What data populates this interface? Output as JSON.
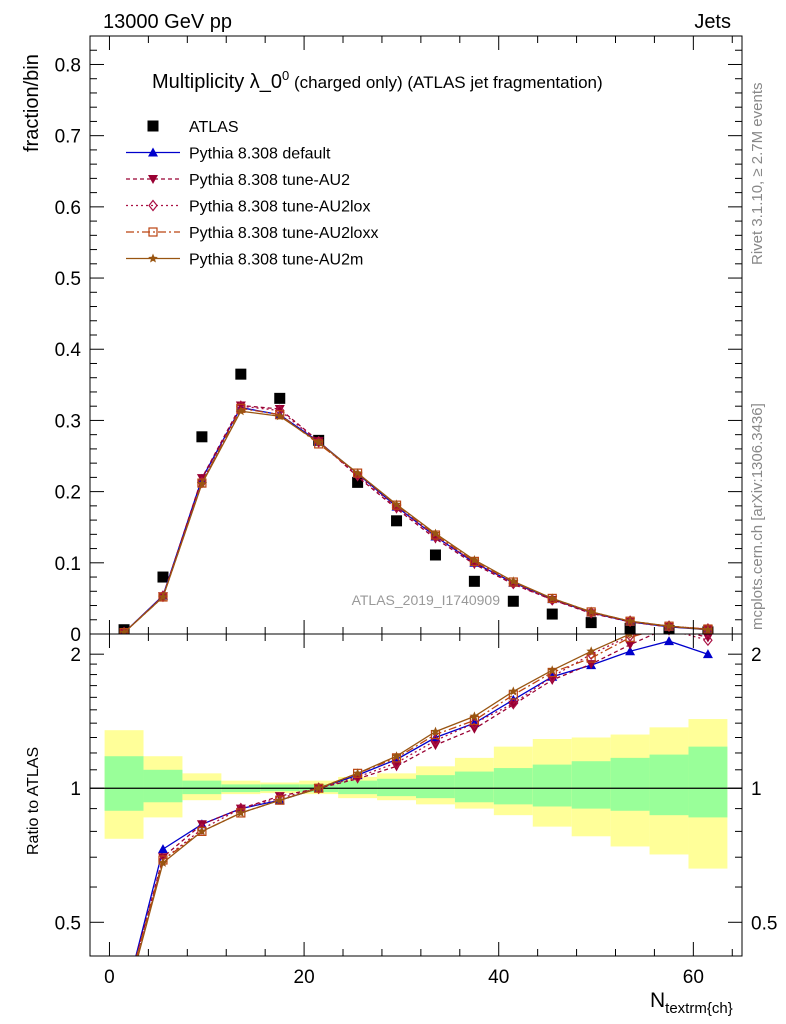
{
  "header": {
    "left": "13000 GeV pp",
    "right": "Jets"
  },
  "side_labels": {
    "rivet": "Rivet 3.1.10, ≥ 2.7M events",
    "mcplots": "mcplots.cern.ch [arXiv:1306.3436]"
  },
  "chart_data": [
    {
      "type": "scatter",
      "title_main": "Multiplicity λ_0",
      "title_sup": "0",
      "title_rest": " (charged only) (ATLAS jet fragmentation)",
      "ylabel": "fraction/bin",
      "watermark": "ATLAS_2019_I1740909",
      "xlim": [
        -2,
        65
      ],
      "ylim": [
        0,
        0.84
      ],
      "yticks": [
        0,
        0.1,
        0.2,
        0.3,
        0.4,
        0.5,
        0.6,
        0.7,
        0.8
      ],
      "ytick_labels": [
        "0",
        "0.1",
        "0.2",
        "0.3",
        "0.4",
        "0.5",
        "0.6",
        "0.7",
        "0.8"
      ],
      "x": [
        1.5,
        5.5,
        9.5,
        13.5,
        17.5,
        21.5,
        25.5,
        29.5,
        33.5,
        37.5,
        41.5,
        45.5,
        49.5,
        53.5,
        57.5,
        61.5
      ],
      "legend": [
        {
          "name": "ATLAS",
          "color": "#000000",
          "marker": "square",
          "dash": "none"
        },
        {
          "name": "Pythia 8.308 default",
          "color": "#0000cc",
          "marker": "triangle",
          "dash": "solid"
        },
        {
          "name": "Pythia 8.308 tune-AU2",
          "color": "#990033",
          "marker": "triangle-down",
          "dash": "4,3"
        },
        {
          "name": "Pythia 8.308 tune-AU2lox",
          "color": "#aa1144",
          "marker": "diamond-open",
          "dash": "2,3"
        },
        {
          "name": "Pythia 8.308 tune-AU2loxx",
          "color": "#bb4411",
          "marker": "square-open",
          "dash": "8,3,2,3"
        },
        {
          "name": "Pythia 8.308 tune-AU2m",
          "color": "#995511",
          "marker": "star",
          "dash": "solid"
        }
      ],
      "series": [
        {
          "name": "ATLAS",
          "values": [
            0.006,
            0.08,
            0.277,
            0.365,
            0.331,
            0.272,
            0.213,
            0.159,
            0.111,
            0.074,
            0.046,
            0.028,
            0.016,
            0.008,
            0.005,
            0.003
          ]
        },
        {
          "name": "Pythia 8.308 default",
          "values": [
            0.002,
            0.054,
            0.218,
            0.318,
            0.308,
            0.27,
            0.225,
            0.179,
            0.137,
            0.1,
            0.072,
            0.049,
            0.03,
            0.017,
            0.01,
            0.006
          ]
        },
        {
          "name": "Pythia 8.308 tune-AU2",
          "values": [
            0.002,
            0.053,
            0.219,
            0.321,
            0.316,
            0.271,
            0.221,
            0.176,
            0.134,
            0.098,
            0.07,
            0.048,
            0.029,
            0.017,
            0.01,
            0.007
          ]
        },
        {
          "name": "Pythia 8.308 tune-AU2lox",
          "values": [
            0.002,
            0.053,
            0.213,
            0.32,
            0.314,
            0.27,
            0.223,
            0.178,
            0.137,
            0.101,
            0.071,
            0.048,
            0.03,
            0.018,
            0.011,
            0.007
          ]
        },
        {
          "name": "Pythia 8.308 tune-AU2loxx",
          "values": [
            0.002,
            0.052,
            0.212,
            0.317,
            0.308,
            0.267,
            0.226,
            0.181,
            0.139,
            0.102,
            0.073,
            0.05,
            0.031,
            0.018,
            0.011,
            0.007
          ]
        },
        {
          "name": "Pythia 8.308 tune-AU2m",
          "values": [
            0.002,
            0.052,
            0.211,
            0.313,
            0.306,
            0.269,
            0.226,
            0.182,
            0.141,
            0.104,
            0.074,
            0.05,
            0.031,
            0.018,
            0.011,
            0.006
          ]
        }
      ]
    },
    {
      "type": "line",
      "ylabel": "Ratio to ATLAS",
      "xlabel_main": "N",
      "xlabel_sub": "textrm{ch}",
      "xlim": [
        -2,
        65
      ],
      "ylim": [
        0.42,
        2.22
      ],
      "yticks": [
        0.5,
        1,
        2
      ],
      "ytick_labels": [
        "0.5",
        "1",
        "2"
      ],
      "xticks": [
        0,
        20,
        40,
        60
      ],
      "xtick_labels": [
        "0",
        "20",
        "40",
        "60"
      ],
      "reference": 1,
      "band_colors": {
        "outer": "#ffff99",
        "inner": "#99ff99",
        "reference": "#000000"
      },
      "bins": [
        [
          -0.5,
          3.5
        ],
        [
          3.5,
          7.5
        ],
        [
          7.5,
          11.5
        ],
        [
          11.5,
          15.5
        ],
        [
          15.5,
          19.5
        ],
        [
          19.5,
          23.5
        ],
        [
          23.5,
          27.5
        ],
        [
          27.5,
          31.5
        ],
        [
          31.5,
          35.5
        ],
        [
          35.5,
          39.5
        ],
        [
          39.5,
          43.5
        ],
        [
          43.5,
          47.5
        ],
        [
          47.5,
          51.5
        ],
        [
          51.5,
          55.5
        ],
        [
          55.5,
          59.5
        ],
        [
          59.5,
          63.5
        ]
      ],
      "band_inner": [
        [
          0.89,
          1.18
        ],
        [
          0.93,
          1.1
        ],
        [
          0.97,
          1.04
        ],
        [
          0.98,
          1.02
        ],
        [
          0.985,
          1.02
        ],
        [
          0.98,
          1.02
        ],
        [
          0.97,
          1.04
        ],
        [
          0.96,
          1.05
        ],
        [
          0.95,
          1.07
        ],
        [
          0.93,
          1.09
        ],
        [
          0.92,
          1.11
        ],
        [
          0.91,
          1.13
        ],
        [
          0.9,
          1.15
        ],
        [
          0.89,
          1.17
        ],
        [
          0.87,
          1.19
        ],
        [
          0.86,
          1.24
        ]
      ],
      "band_outer": [
        [
          0.77,
          1.35
        ],
        [
          0.86,
          1.18
        ],
        [
          0.94,
          1.08
        ],
        [
          0.97,
          1.04
        ],
        [
          0.975,
          1.03
        ],
        [
          0.97,
          1.04
        ],
        [
          0.95,
          1.06
        ],
        [
          0.94,
          1.08
        ],
        [
          0.92,
          1.12
        ],
        [
          0.9,
          1.17
        ],
        [
          0.87,
          1.24
        ],
        [
          0.82,
          1.29
        ],
        [
          0.78,
          1.3
        ],
        [
          0.74,
          1.32
        ],
        [
          0.71,
          1.37
        ],
        [
          0.66,
          1.43
        ]
      ],
      "series": [
        {
          "name": "Pythia 8.308 default",
          "values": [
            0.33,
            0.73,
            0.83,
            0.9,
            0.94,
            1.0,
            1.07,
            1.16,
            1.3,
            1.4,
            1.58,
            1.78,
            1.89,
            2.03,
            2.14,
            2.0
          ]
        },
        {
          "name": "Pythia 8.308 tune-AU2",
          "values": [
            0.33,
            0.7,
            0.83,
            0.9,
            0.96,
            1.0,
            1.05,
            1.12,
            1.25,
            1.36,
            1.54,
            1.75,
            1.9,
            2.1,
            2.3,
            2.18
          ]
        },
        {
          "name": "Pythia 8.308 tune-AU2lox",
          "values": [
            0.33,
            0.69,
            0.81,
            0.9,
            0.95,
            1.0,
            1.06,
            1.14,
            1.28,
            1.4,
            1.55,
            1.78,
            2.0,
            2.2,
            2.27,
            2.15
          ]
        },
        {
          "name": "Pythia 8.308 tune-AU2loxx",
          "values": [
            0.33,
            0.69,
            0.8,
            0.88,
            0.94,
            1.0,
            1.08,
            1.17,
            1.32,
            1.42,
            1.62,
            1.82,
            1.96,
            2.18,
            2.32,
            2.28
          ]
        },
        {
          "name": "Pythia 8.308 tune-AU2m",
          "values": [
            0.32,
            0.68,
            0.8,
            0.88,
            0.94,
            1.0,
            1.08,
            1.18,
            1.34,
            1.45,
            1.65,
            1.84,
            2.03,
            2.22,
            2.38,
            2.3
          ]
        }
      ]
    }
  ]
}
